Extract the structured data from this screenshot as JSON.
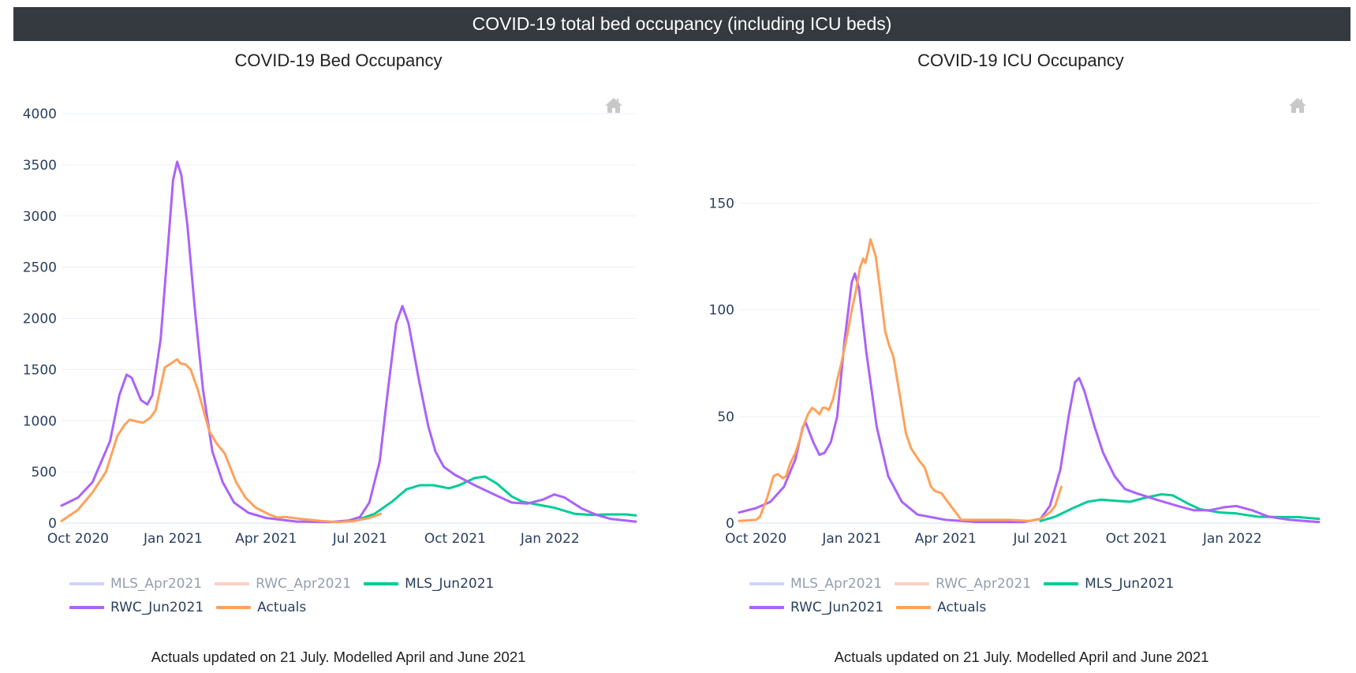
{
  "header": {
    "title": "COVID-19 total bed occupancy (including ICU beds)"
  },
  "footer_note": "Actuals updated on 21 July. Modelled April and June 2021",
  "toolbar": {
    "home_icon": "home-icon",
    "home_tooltip": "Reset axes"
  },
  "legend": [
    {
      "name": "MLS_Apr2021",
      "color": "#a3a8f8",
      "visible": false
    },
    {
      "name": "RWC_Apr2021",
      "color": "#f4a08c",
      "visible": false
    },
    {
      "name": "MLS_Jun2021",
      "color": "#00cc96",
      "visible": true
    },
    {
      "name": "RWC_Jun2021",
      "color": "#ab63fa",
      "visible": true
    },
    {
      "name": "Actuals",
      "color": "#ffa15a",
      "visible": true
    }
  ],
  "chart_data": [
    {
      "type": "line",
      "title": "COVID-19 Bed Occupancy",
      "xlabel": "",
      "ylabel": "",
      "xlim": [
        "2020-09-15",
        "2022-03-25"
      ],
      "ylim": [
        0,
        4000
      ],
      "x_ticks": [
        {
          "date": "2020-10-01",
          "label": "Oct 2020"
        },
        {
          "date": "2021-01-01",
          "label": "Jan 2021"
        },
        {
          "date": "2021-04-01",
          "label": "Apr 2021"
        },
        {
          "date": "2021-07-01",
          "label": "Jul 2021"
        },
        {
          "date": "2021-10-01",
          "label": "Oct 2021"
        },
        {
          "date": "2022-01-01",
          "label": "Jan 2022"
        }
      ],
      "y_ticks": [
        0,
        500,
        1000,
        1500,
        2000,
        2500,
        3000,
        3500,
        4000
      ],
      "grid": true,
      "legend_position": "bottom-left",
      "series": [
        {
          "name": "MLS_Jun2021",
          "color": "#00cc96",
          "points": [
            [
              "2021-07-01",
              40
            ],
            [
              "2021-07-15",
              90
            ],
            [
              "2021-08-01",
              210
            ],
            [
              "2021-08-15",
              330
            ],
            [
              "2021-08-28",
              370
            ],
            [
              "2021-09-10",
              370
            ],
            [
              "2021-09-25",
              340
            ],
            [
              "2021-10-05",
              370
            ],
            [
              "2021-10-20",
              440
            ],
            [
              "2021-10-30",
              455
            ],
            [
              "2021-11-10",
              390
            ],
            [
              "2021-11-25",
              260
            ],
            [
              "2021-12-05",
              210
            ],
            [
              "2021-12-20",
              180
            ],
            [
              "2022-01-05",
              150
            ],
            [
              "2022-01-25",
              90
            ],
            [
              "2022-02-10",
              80
            ],
            [
              "2022-03-01",
              85
            ],
            [
              "2022-03-15",
              85
            ],
            [
              "2022-03-25",
              75
            ]
          ]
        },
        {
          "name": "RWC_Jun2021",
          "color": "#ab63fa",
          "points": [
            [
              "2020-09-15",
              170
            ],
            [
              "2020-10-01",
              250
            ],
            [
              "2020-10-15",
              400
            ],
            [
              "2020-11-01",
              800
            ],
            [
              "2020-11-10",
              1250
            ],
            [
              "2020-11-17",
              1450
            ],
            [
              "2020-11-22",
              1420
            ],
            [
              "2020-12-01",
              1200
            ],
            [
              "2020-12-07",
              1160
            ],
            [
              "2020-12-12",
              1250
            ],
            [
              "2020-12-20",
              1800
            ],
            [
              "2020-12-27",
              2700
            ],
            [
              "2021-01-01",
              3350
            ],
            [
              "2021-01-05",
              3530
            ],
            [
              "2021-01-09",
              3400
            ],
            [
              "2021-01-15",
              2900
            ],
            [
              "2021-01-22",
              2100
            ],
            [
              "2021-01-30",
              1300
            ],
            [
              "2021-02-08",
              700
            ],
            [
              "2021-02-18",
              400
            ],
            [
              "2021-03-01",
              200
            ],
            [
              "2021-03-15",
              100
            ],
            [
              "2021-04-01",
              50
            ],
            [
              "2021-05-01",
              15
            ],
            [
              "2021-06-01",
              10
            ],
            [
              "2021-06-20",
              25
            ],
            [
              "2021-07-01",
              60
            ],
            [
              "2021-07-10",
              200
            ],
            [
              "2021-07-20",
              600
            ],
            [
              "2021-07-28",
              1300
            ],
            [
              "2021-08-05",
              1950
            ],
            [
              "2021-08-11",
              2120
            ],
            [
              "2021-08-17",
              1950
            ],
            [
              "2021-08-27",
              1400
            ],
            [
              "2021-09-05",
              950
            ],
            [
              "2021-09-12",
              700
            ],
            [
              "2021-09-20",
              550
            ],
            [
              "2021-10-01",
              470
            ],
            [
              "2021-10-20",
              370
            ],
            [
              "2021-11-10",
              270
            ],
            [
              "2021-11-25",
              200
            ],
            [
              "2021-12-10",
              190
            ],
            [
              "2021-12-25",
              230
            ],
            [
              "2022-01-05",
              280
            ],
            [
              "2022-01-15",
              250
            ],
            [
              "2022-02-01",
              140
            ],
            [
              "2022-02-15",
              80
            ],
            [
              "2022-03-01",
              40
            ],
            [
              "2022-03-25",
              15
            ]
          ]
        },
        {
          "name": "Actuals",
          "color": "#ffa15a",
          "points": [
            [
              "2020-09-15",
              20
            ],
            [
              "2020-10-01",
              130
            ],
            [
              "2020-10-15",
              300
            ],
            [
              "2020-10-28",
              500
            ],
            [
              "2020-11-08",
              850
            ],
            [
              "2020-11-15",
              960
            ],
            [
              "2020-11-20",
              1010
            ],
            [
              "2020-11-28",
              990
            ],
            [
              "2020-12-03",
              980
            ],
            [
              "2020-12-10",
              1030
            ],
            [
              "2020-12-15",
              1100
            ],
            [
              "2020-12-24",
              1520
            ],
            [
              "2020-12-30",
              1560
            ],
            [
              "2021-01-05",
              1600
            ],
            [
              "2021-01-08",
              1560
            ],
            [
              "2021-01-13",
              1550
            ],
            [
              "2021-01-18",
              1500
            ],
            [
              "2021-01-25",
              1300
            ],
            [
              "2021-02-05",
              900
            ],
            [
              "2021-02-12",
              780
            ],
            [
              "2021-02-20",
              680
            ],
            [
              "2021-03-03",
              400
            ],
            [
              "2021-03-12",
              250
            ],
            [
              "2021-03-22",
              150
            ],
            [
              "2021-04-05",
              80
            ],
            [
              "2021-04-12",
              55
            ],
            [
              "2021-04-20",
              60
            ],
            [
              "2021-05-05",
              40
            ],
            [
              "2021-05-25",
              20
            ],
            [
              "2021-06-10",
              10
            ],
            [
              "2021-06-25",
              20
            ],
            [
              "2021-07-10",
              50
            ],
            [
              "2021-07-21",
              90
            ]
          ]
        }
      ]
    },
    {
      "type": "line",
      "title": "COVID-19 ICU Occupancy",
      "xlabel": "",
      "ylabel": "",
      "xlim": [
        "2020-09-15",
        "2022-03-25"
      ],
      "ylim": [
        0,
        192
      ],
      "x_ticks": [
        {
          "date": "2020-10-01",
          "label": "Oct 2020"
        },
        {
          "date": "2021-01-01",
          "label": "Jan 2021"
        },
        {
          "date": "2021-04-01",
          "label": "Apr 2021"
        },
        {
          "date": "2021-07-01",
          "label": "Jul 2021"
        },
        {
          "date": "2021-10-01",
          "label": "Oct 2021"
        },
        {
          "date": "2022-01-01",
          "label": "Jan 2022"
        }
      ],
      "y_ticks": [
        0,
        50,
        100,
        150
      ],
      "grid": true,
      "legend_position": "bottom-left",
      "series": [
        {
          "name": "MLS_Jun2021",
          "color": "#00cc96",
          "points": [
            [
              "2021-07-01",
              1
            ],
            [
              "2021-07-15",
              3
            ],
            [
              "2021-08-01",
              7
            ],
            [
              "2021-08-15",
              10
            ],
            [
              "2021-08-28",
              11
            ],
            [
              "2021-09-10",
              10.5
            ],
            [
              "2021-09-25",
              10
            ],
            [
              "2021-10-10",
              12
            ],
            [
              "2021-10-25",
              13.5
            ],
            [
              "2021-11-05",
              13
            ],
            [
              "2021-11-20",
              9
            ],
            [
              "2021-12-01",
              6.5
            ],
            [
              "2021-12-20",
              5
            ],
            [
              "2022-01-05",
              4.5
            ],
            [
              "2022-01-25",
              3
            ],
            [
              "2022-02-15",
              2.8
            ],
            [
              "2022-03-05",
              2.8
            ],
            [
              "2022-03-25",
              2
            ]
          ]
        },
        {
          "name": "RWC_Jun2021",
          "color": "#ab63fa",
          "points": [
            [
              "2020-09-15",
              5
            ],
            [
              "2020-10-01",
              7
            ],
            [
              "2020-10-15",
              10
            ],
            [
              "2020-10-28",
              17
            ],
            [
              "2020-11-08",
              30
            ],
            [
              "2020-11-15",
              45
            ],
            [
              "2020-11-18",
              47
            ],
            [
              "2020-11-25",
              38
            ],
            [
              "2020-12-01",
              32
            ],
            [
              "2020-12-06",
              33
            ],
            [
              "2020-12-12",
              38
            ],
            [
              "2020-12-18",
              50
            ],
            [
              "2020-12-25",
              85
            ],
            [
              "2021-01-01",
              113
            ],
            [
              "2021-01-04",
              117
            ],
            [
              "2021-01-08",
              110
            ],
            [
              "2021-01-15",
              80
            ],
            [
              "2021-01-25",
              45
            ],
            [
              "2021-02-05",
              22
            ],
            [
              "2021-02-18",
              10
            ],
            [
              "2021-03-05",
              4
            ],
            [
              "2021-04-01",
              1.5
            ],
            [
              "2021-05-01",
              0.5
            ],
            [
              "2021-06-15",
              0.5
            ],
            [
              "2021-07-01",
              2
            ],
            [
              "2021-07-10",
              8
            ],
            [
              "2021-07-20",
              25
            ],
            [
              "2021-07-28",
              50
            ],
            [
              "2021-08-03",
              66
            ],
            [
              "2021-08-07",
              68
            ],
            [
              "2021-08-12",
              62
            ],
            [
              "2021-08-22",
              45
            ],
            [
              "2021-08-30",
              33
            ],
            [
              "2021-09-10",
              22
            ],
            [
              "2021-09-20",
              16
            ],
            [
              "2021-10-01",
              14
            ],
            [
              "2021-10-20",
              11
            ],
            [
              "2021-11-10",
              8
            ],
            [
              "2021-11-25",
              6
            ],
            [
              "2021-12-10",
              6
            ],
            [
              "2021-12-25",
              7.5
            ],
            [
              "2022-01-05",
              8
            ],
            [
              "2022-01-20",
              6
            ],
            [
              "2022-02-05",
              3
            ],
            [
              "2022-02-25",
              1.5
            ],
            [
              "2022-03-25",
              0.5
            ]
          ]
        },
        {
          "name": "Actuals",
          "color": "#ffa15a",
          "points": [
            [
              "2020-09-15",
              1
            ],
            [
              "2020-10-01",
              1.5
            ],
            [
              "2020-10-05",
              3
            ],
            [
              "2020-10-12",
              12
            ],
            [
              "2020-10-18",
              22
            ],
            [
              "2020-10-22",
              23
            ],
            [
              "2020-10-27",
              21
            ],
            [
              "2020-10-30",
              22
            ],
            [
              "2020-11-03",
              28
            ],
            [
              "2020-11-08",
              33
            ],
            [
              "2020-11-12",
              39
            ],
            [
              "2020-11-16",
              46
            ],
            [
              "2020-11-20",
              51
            ],
            [
              "2020-11-24",
              54
            ],
            [
              "2020-11-27",
              53
            ],
            [
              "2020-12-01",
              51
            ],
            [
              "2020-12-04",
              54
            ],
            [
              "2020-12-07",
              54
            ],
            [
              "2020-12-10",
              53
            ],
            [
              "2020-12-14",
              58
            ],
            [
              "2020-12-18",
              67
            ],
            [
              "2020-12-22",
              75
            ],
            [
              "2020-12-28",
              89
            ],
            [
              "2021-01-01",
              100
            ],
            [
              "2021-01-05",
              109
            ],
            [
              "2021-01-09",
              120
            ],
            [
              "2021-01-12",
              124
            ],
            [
              "2021-01-14",
              122
            ],
            [
              "2021-01-17",
              128
            ],
            [
              "2021-01-19",
              133
            ],
            [
              "2021-01-24",
              125
            ],
            [
              "2021-01-28",
              110
            ],
            [
              "2021-02-02",
              90
            ],
            [
              "2021-02-06",
              83
            ],
            [
              "2021-02-10",
              78
            ],
            [
              "2021-02-16",
              60
            ],
            [
              "2021-02-22",
              42
            ],
            [
              "2021-02-27",
              35
            ],
            [
              "2021-03-03",
              32
            ],
            [
              "2021-03-07",
              29
            ],
            [
              "2021-03-12",
              26
            ],
            [
              "2021-03-18",
              17
            ],
            [
              "2021-03-22",
              15
            ],
            [
              "2021-03-28",
              14
            ],
            [
              "2021-04-06",
              8
            ],
            [
              "2021-04-16",
              1.5
            ],
            [
              "2021-05-01",
              1.5
            ],
            [
              "2021-06-01",
              1.5
            ],
            [
              "2021-06-20",
              1
            ],
            [
              "2021-07-01",
              2
            ],
            [
              "2021-07-10",
              5
            ],
            [
              "2021-07-15",
              8
            ],
            [
              "2021-07-21",
              17
            ]
          ]
        }
      ]
    }
  ]
}
